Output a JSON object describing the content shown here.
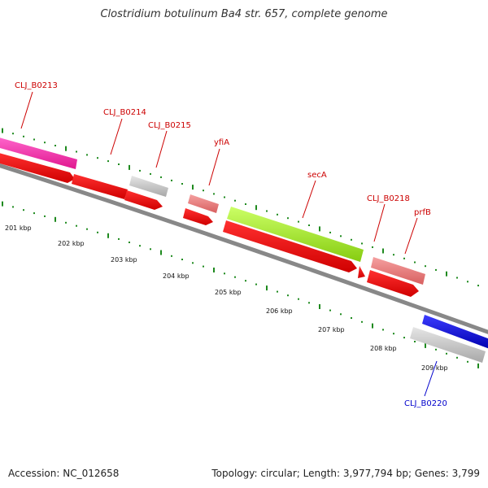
{
  "title": "Clostridium botulinum Ba4 str. 657, complete genome",
  "footer": {
    "accession": "Accession: NC_012658",
    "stats": "Topology: circular; Length: 3,977,794 bp; Genes: 3,799"
  },
  "colors": {
    "backbone": "#7a7a7a",
    "tick": "#1f8a1f",
    "label_forward": "#cc0000",
    "label_reverse": "#0000cc"
  },
  "kbp_ticks": [
    "201 kbp",
    "202 kbp",
    "203 kbp",
    "204 kbp",
    "205 kbp",
    "206 kbp",
    "207 kbp",
    "208 kbp",
    "209 kbp"
  ],
  "gene_labels": [
    "CLJ_B0213",
    "CLJ_B0214",
    "CLJ_B0215",
    "yfiA",
    "secA",
    "CLJ_B0218",
    "prfB",
    "CLJ_B0220"
  ]
}
